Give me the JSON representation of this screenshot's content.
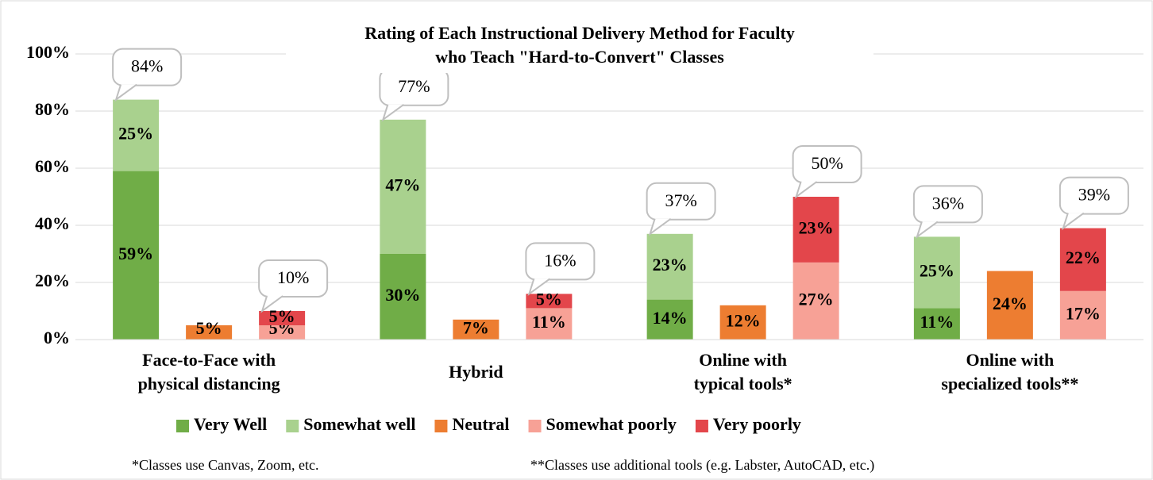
{
  "chart_data": {
    "type": "bar",
    "title": [
      "Rating of Each Instructional Delivery Method for Faculty",
      "who Teach \"Hard-to-Convert\" Classes"
    ],
    "categories": [
      [
        "Face-to-Face with",
        "physical distancing"
      ],
      [
        "Hybrid"
      ],
      [
        "Online with",
        "typical tools*"
      ],
      [
        "Online with",
        "specialized tools**"
      ]
    ],
    "series": [
      {
        "name": "Very Well",
        "color": "#70ad47",
        "stack": "positive",
        "values": [
          59,
          30,
          14,
          11
        ],
        "value_labels": [
          "59%",
          "30%",
          "14%",
          "11%"
        ]
      },
      {
        "name": "Somewhat well",
        "color": "#a9d18e",
        "stack": "positive",
        "values": [
          25,
          47,
          23,
          25
        ],
        "value_labels": [
          "25%",
          "47%",
          "23%",
          "25%"
        ]
      },
      {
        "name": "Neutral",
        "color": "#ed7d31",
        "stack": "neutral",
        "values": [
          5,
          7,
          12,
          24
        ],
        "value_labels": [
          "5%",
          "7%",
          "12%",
          "24%"
        ]
      },
      {
        "name": "Somewhat poorly",
        "color": "#f7a196",
        "stack": "negative",
        "values": [
          5,
          11,
          27,
          17
        ],
        "value_labels": [
          "5%",
          "11%",
          "27%",
          "17%"
        ]
      },
      {
        "name": "Very poorly",
        "color": "#e3464b",
        "stack": "negative",
        "values": [
          5,
          5,
          23,
          22
        ],
        "value_labels": [
          "5%",
          "5%",
          "23%",
          "22%"
        ]
      }
    ],
    "totals": [
      {
        "stack": "positive",
        "values": [
          84,
          77,
          37,
          36
        ],
        "value_labels": [
          "84%",
          "77%",
          "37%",
          "36%"
        ]
      },
      {
        "stack": "negative",
        "values": [
          10,
          16,
          50,
          39
        ],
        "value_labels": [
          "10%",
          "16%",
          "50%",
          "39%"
        ]
      }
    ],
    "ylim": [
      0,
      100
    ],
    "yticks": [
      {
        "value": 0,
        "label": "0%"
      },
      {
        "value": 20,
        "label": "20%"
      },
      {
        "value": 40,
        "label": "40%"
      },
      {
        "value": 60,
        "label": "60%"
      },
      {
        "value": 80,
        "label": "80%"
      },
      {
        "value": 100,
        "label": "100%"
      }
    ],
    "grid": true,
    "legend": "bottom",
    "footnotes": [
      "*Classes use Canvas, Zoom, etc.",
      "**Classes use additional tools (e.g. Labster, AutoCAD, etc.)"
    ]
  }
}
